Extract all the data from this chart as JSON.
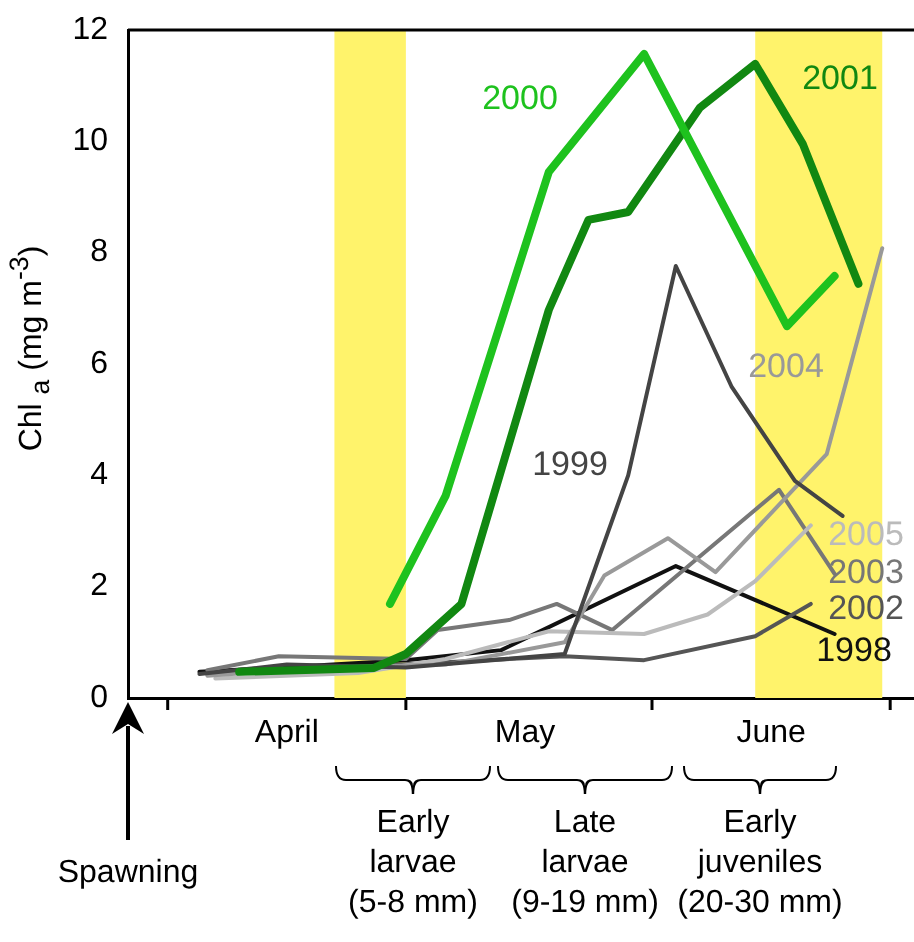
{
  "chart_data": {
    "type": "line",
    "ylabel": "Chl $_{a}$ (mg m$^{-3}$)",
    "xlim": [
      "--03-27",
      "--07-04"
    ],
    "xticks": [
      {
        "value": "--04-01",
        "label": null
      },
      {
        "value": "--04-16",
        "label": "April"
      },
      {
        "value": "--05-01",
        "label": null
      },
      {
        "value": "--05-16",
        "label": "May"
      },
      {
        "value": "--06-01",
        "label": null
      },
      {
        "value": "--06-16",
        "label": "June"
      },
      {
        "value": "--07-01",
        "label": null
      }
    ],
    "ylim": [
      0,
      12
    ],
    "yticks": [
      0,
      2,
      4,
      6,
      8,
      10,
      12
    ],
    "grid": false,
    "legend": false,
    "marker": "none",
    "line_style": "solid",
    "bands": [
      {
        "axis": "x",
        "from": "--04-22",
        "to": "--05-01",
        "color": "#fff36b"
      },
      {
        "axis": "x",
        "from": "--06-14",
        "to": "--06-30",
        "color": "#fff36b"
      }
    ],
    "annotations": [
      "Spawning",
      "Early larvae (5-8 mm)",
      "Late larvae (9-19 mm)",
      "Early juveniles (20-30 mm)"
    ],
    "series": [
      {
        "name": "2000",
        "color": "#1ec21e",
        "x": [
          "--04-29",
          "--05-06",
          "--05-19",
          "--05-31",
          "--06-18",
          "--06-24"
        ],
        "values": [
          1.69,
          3.63,
          9.45,
          11.57,
          6.68,
          7.58
        ]
      },
      {
        "name": "2001",
        "color": "#118811",
        "x": [
          "--04-10",
          "--04-27",
          "--05-01",
          "--05-08",
          "--05-19",
          "--05-24",
          "--05-29",
          "--06-07",
          "--06-14",
          "--06-20",
          "--06-27"
        ],
        "values": [
          0.47,
          0.54,
          0.79,
          1.69,
          6.97,
          8.59,
          8.73,
          10.6,
          11.39,
          9.95,
          7.44
        ]
      },
      {
        "name": "1999",
        "color": "#444444",
        "x": [
          "--04-05",
          "--04-16",
          "--05-01",
          "--05-21",
          "--05-29",
          "--06-04",
          "--06-11",
          "--06-19",
          "--06-25"
        ],
        "values": [
          0.43,
          0.6,
          0.55,
          0.79,
          4.0,
          7.76,
          5.6,
          3.9,
          3.27
        ]
      },
      {
        "name": "2004",
        "color": "#999999",
        "x": [
          "--04-06",
          "--04-21",
          "--05-06",
          "--05-21",
          "--05-26",
          "--06-03",
          "--06-09",
          "--06-23",
          "--06-30"
        ],
        "values": [
          0.4,
          0.55,
          0.6,
          1.0,
          2.2,
          2.87,
          2.26,
          4.38,
          8.08
        ]
      },
      {
        "name": "2005",
        "color": "#bbbbbb",
        "x": [
          "--04-07",
          "--04-25",
          "--05-06",
          "--05-19",
          "--05-31",
          "--06-08",
          "--06-14",
          "--06-21"
        ],
        "values": [
          0.35,
          0.45,
          0.7,
          1.2,
          1.15,
          1.5,
          2.1,
          3.1
        ]
      },
      {
        "name": "2003",
        "color": "#777777",
        "x": [
          "--04-06",
          "--04-15",
          "--05-01",
          "--05-05",
          "--05-14",
          "--05-20",
          "--05-27",
          "--06-17",
          "--06-24"
        ],
        "values": [
          0.5,
          0.75,
          0.7,
          1.22,
          1.4,
          1.69,
          1.22,
          3.74,
          2.23
        ]
      },
      {
        "name": "2002",
        "color": "#555555",
        "x": [
          "--04-06",
          "--04-26",
          "--05-11",
          "--05-21",
          "--05-31",
          "--06-14",
          "--06-21"
        ],
        "values": [
          0.43,
          0.57,
          0.68,
          0.75,
          0.68,
          1.11,
          1.69
        ]
      },
      {
        "name": "1998",
        "color": "#111111",
        "x": [
          "--04-05",
          "--04-18",
          "--05-01",
          "--05-13",
          "--06-04",
          "--06-24"
        ],
        "values": [
          0.47,
          0.57,
          0.68,
          0.86,
          2.37,
          1.15
        ]
      }
    ]
  }
}
